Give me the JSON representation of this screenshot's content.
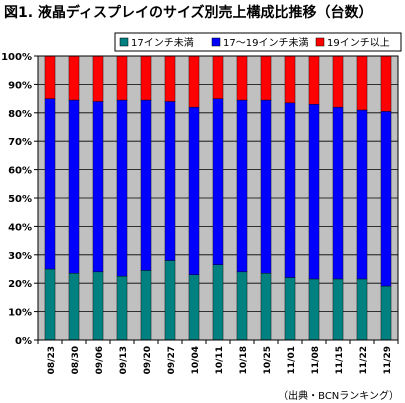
{
  "title": "図1. 液晶ディスプレイのサイズ別売上構成比推移（台数）",
  "source": "（出典・BCNランキング）",
  "chart_data": {
    "type": "bar",
    "stacked": true,
    "percent": true,
    "categories": [
      "08/23",
      "08/30",
      "09/06",
      "09/13",
      "09/20",
      "09/27",
      "10/04",
      "10/11",
      "10/18",
      "10/25",
      "11/01",
      "11/08",
      "11/15",
      "11/22",
      "11/29"
    ],
    "series": [
      {
        "name": "17インチ未満",
        "color": "#008080",
        "values": [
          25,
          23.5,
          24,
          22.5,
          24.5,
          28,
          23,
          26.5,
          24,
          23.5,
          22,
          21.5,
          21.5,
          21.5,
          19
        ]
      },
      {
        "name": "17〜19インチ未満",
        "color": "#0000ff",
        "values": [
          60,
          61,
          60,
          62,
          60,
          56,
          59,
          58.5,
          60.5,
          61,
          61.5,
          61.5,
          60.5,
          59.5,
          61.5
        ]
      },
      {
        "name": "19インチ以上",
        "color": "#ff0000",
        "values": [
          15,
          15.5,
          16,
          15.5,
          15.5,
          16,
          18,
          15,
          15.5,
          15.5,
          16.5,
          17,
          18,
          19,
          19.5
        ]
      }
    ],
    "yticks": [
      "0%",
      "10%",
      "20%",
      "30%",
      "40%",
      "50%",
      "60%",
      "70%",
      "80%",
      "90%",
      "100%"
    ],
    "ylim": [
      0,
      100
    ],
    "grid": true,
    "legend": "top-right"
  }
}
